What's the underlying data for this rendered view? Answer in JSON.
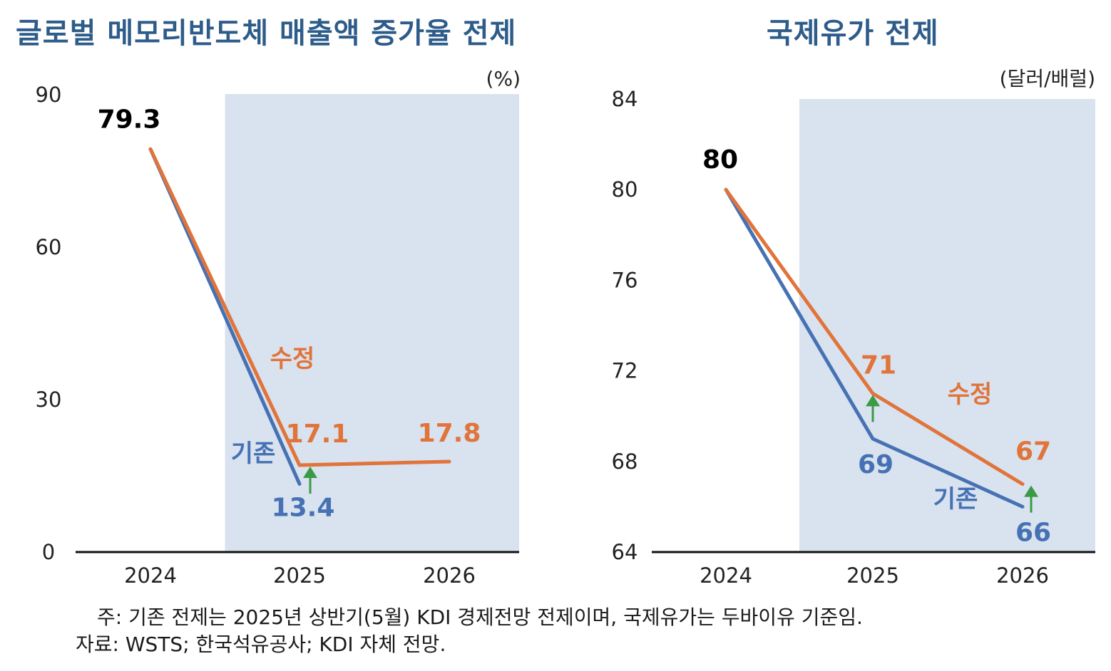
{
  "chart_data": [
    {
      "type": "line",
      "title": "글로벌 메모리반도체 매출액 증가율 전제",
      "unit": "(%)",
      "categories": [
        "2024",
        "2025",
        "2026"
      ],
      "ylim": [
        0,
        90
      ],
      "yticks": [
        "0",
        "30",
        "60",
        "90"
      ],
      "grid": false,
      "highlight_from": "2025",
      "series": [
        {
          "name": "기존",
          "color": "#4672b4",
          "values": [
            79.3,
            13.4,
            null
          ],
          "labels": [
            "",
            "13.4",
            ""
          ]
        },
        {
          "name": "수정",
          "color": "#e0743a",
          "values": [
            79.3,
            17.1,
            17.8
          ],
          "labels": [
            "79.3",
            "17.1",
            "17.8"
          ]
        }
      ]
    },
    {
      "type": "line",
      "title": "국제유가 전제",
      "unit": "(달러/배럴)",
      "categories": [
        "2024",
        "2025",
        "2026"
      ],
      "ylim": [
        64,
        84
      ],
      "yticks": [
        "64",
        "68",
        "72",
        "76",
        "80",
        "84"
      ],
      "grid": false,
      "highlight_from": "2025",
      "series": [
        {
          "name": "기존",
          "color": "#4672b4",
          "values": [
            80,
            69,
            66
          ],
          "labels": [
            "80",
            "69",
            "66"
          ]
        },
        {
          "name": "수정",
          "color": "#e0743a",
          "values": [
            80,
            71,
            67
          ],
          "labels": [
            "",
            "71",
            "67"
          ]
        }
      ]
    }
  ],
  "colors": {
    "title": "#2e5c8a",
    "highlight_band": "#d9e2ef",
    "up_arrow": "#3a9a46",
    "axis": "#111111"
  },
  "notes": [
    "주: 기존 전제는 2025년 상반기(5월) KDI 경제전망 전제이며, 국제유가는 두바이유 기준임.",
    "자료: WSTS; 한국석유공사; KDI 자체 전망."
  ]
}
